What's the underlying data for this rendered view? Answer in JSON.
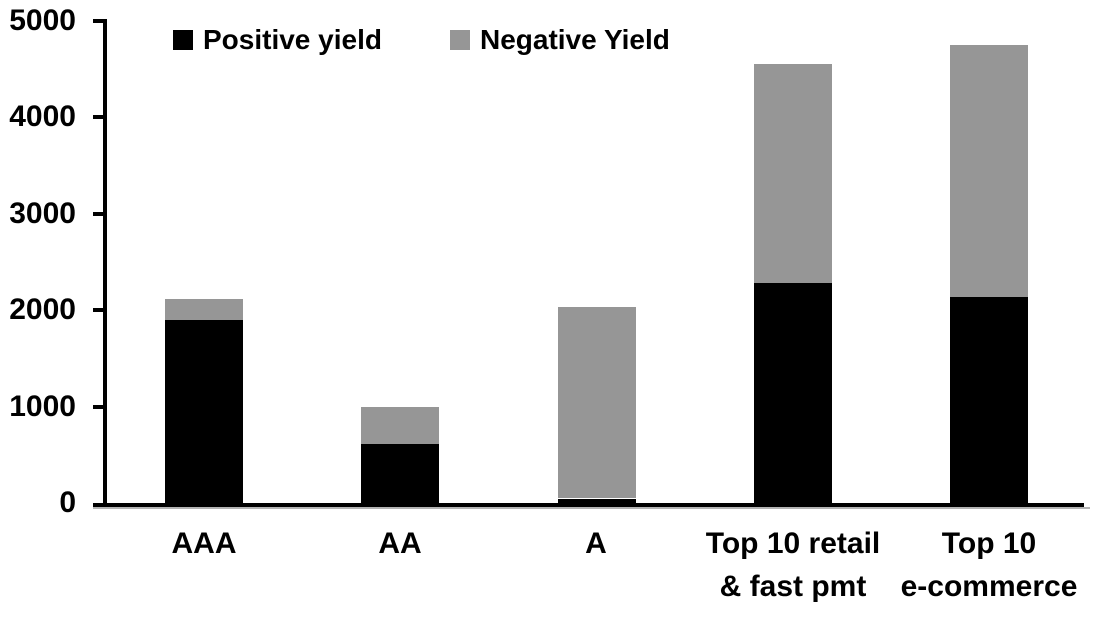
{
  "chart_data": {
    "type": "bar",
    "stacked": true,
    "title": "",
    "xlabel": "",
    "ylabel": "",
    "categories": [
      "AAA",
      "AA",
      "A",
      "Top 10 retail\n& fast pmt",
      "Top 10\ne-commerce"
    ],
    "series": [
      {
        "name": "Positive yield",
        "color": "#000000",
        "values": [
          1900,
          620,
          45,
          2280,
          2140
        ]
      },
      {
        "name": "Negative Yield",
        "color": "#969696",
        "values": [
          220,
          380,
          1985,
          2270,
          2610
        ]
      }
    ],
    "totals": [
      2120,
      1000,
      2030,
      4550,
      4750
    ],
    "ylim": [
      0,
      5000
    ],
    "yticks": [
      0,
      1000,
      2000,
      3000,
      4000,
      5000
    ],
    "ytick_labels": [
      "0",
      "1000",
      "2000",
      "3000",
      "4000",
      "5000"
    ],
    "legend_position": "top",
    "grid": false,
    "axis_color": "#000000",
    "background_color": "#ffffff"
  }
}
